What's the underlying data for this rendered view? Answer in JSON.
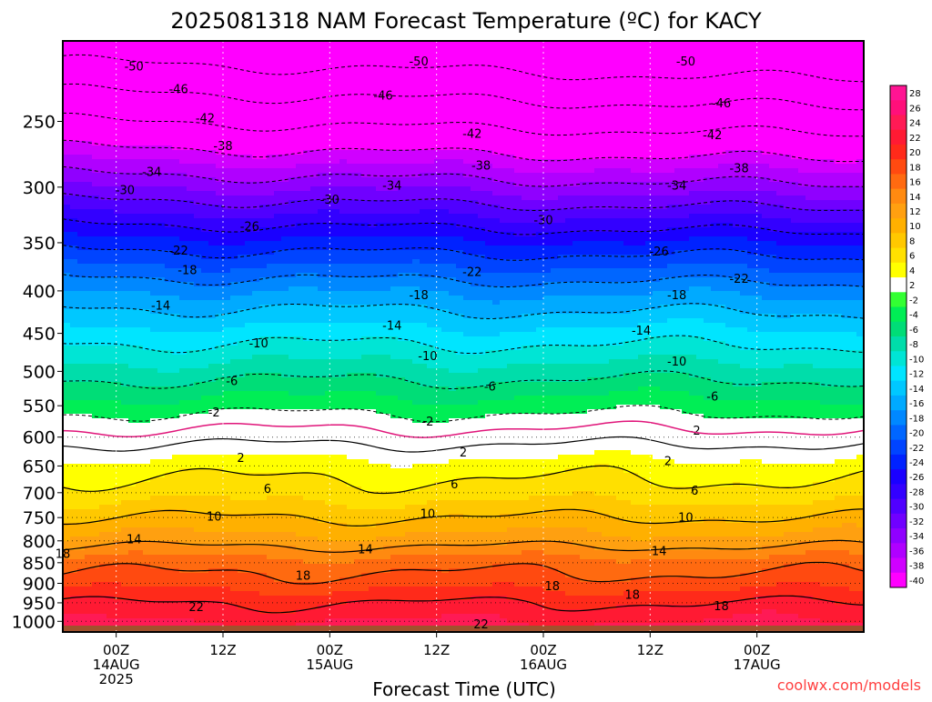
{
  "chart_data": {
    "type": "heatmap",
    "title": "2025081318 NAM Forecast Temperature (ºC) for KACY",
    "xlabel": "Forecast Time (UTC)",
    "ylabel": "",
    "watermark": "coolwx.com/models",
    "y_axis": {
      "scale": "log-pressure",
      "ylim": [
        1030,
        200
      ],
      "ticks": [
        250,
        300,
        350,
        400,
        450,
        500,
        550,
        600,
        650,
        700,
        750,
        800,
        850,
        900,
        950,
        1000
      ],
      "dotted_grid_levels": [
        600,
        650,
        700,
        750,
        800,
        850,
        900,
        950,
        1000
      ]
    },
    "x_axis": {
      "xlim": [
        -6,
        84
      ],
      "ticks": [
        {
          "hours": 0,
          "lines": [
            "00Z",
            "14AUG",
            "2025"
          ]
        },
        {
          "hours": 12,
          "lines": [
            "12Z"
          ]
        },
        {
          "hours": 24,
          "lines": [
            "00Z",
            "15AUG"
          ]
        },
        {
          "hours": 36,
          "lines": [
            "12Z"
          ]
        },
        {
          "hours": 48,
          "lines": [
            "00Z",
            "16AUG"
          ]
        },
        {
          "hours": 60,
          "lines": [
            "12Z"
          ]
        },
        {
          "hours": 72,
          "lines": [
            "00Z",
            "17AUG"
          ]
        }
      ],
      "dotted_grid_hours": [
        0,
        12,
        24,
        36,
        48,
        60,
        72
      ]
    },
    "colorbar": {
      "labels": [
        "28",
        "26",
        "24",
        "22",
        "20",
        "18",
        "16",
        "14",
        "12",
        "10",
        "8",
        "6",
        "4",
        "2",
        "-2",
        "-4",
        "-6",
        "-8",
        "-10",
        "-12",
        "-14",
        "-16",
        "-18",
        "-20",
        "-22",
        "-24",
        "-26",
        "-28",
        "-30",
        "-32",
        "-34",
        "-36",
        "-38",
        "-40"
      ],
      "colors": [
        "#ff1493",
        "#ff0f7a",
        "#ff1a55",
        "#ff1a33",
        "#ff2a1a",
        "#ff4a10",
        "#ff6a10",
        "#ff8a10",
        "#ffa010",
        "#ffb000",
        "#ffc800",
        "#ffe000",
        "#ffff00",
        "#ffffff",
        "#33ff33",
        "#00ee55",
        "#00dd77",
        "#00ddaa",
        "#00e5d5",
        "#00e5ff",
        "#00c8ff",
        "#00aaff",
        "#0088ff",
        "#0066ff",
        "#0044ff",
        "#0022ff",
        "#1a00ff",
        "#3300ff",
        "#5000ff",
        "#7000ff",
        "#9000ff",
        "#b000ff",
        "#d000ff",
        "#ff00ff"
      ]
    },
    "temperature_profile_t0": [
      {
        "p": 1000,
        "t": 24
      },
      {
        "p": 950,
        "t": 22
      },
      {
        "p": 900,
        "t": 19
      },
      {
        "p": 850,
        "t": 17
      },
      {
        "p": 800,
        "t": 13
      },
      {
        "p": 750,
        "t": 10
      },
      {
        "p": 700,
        "t": 7
      },
      {
        "p": 650,
        "t": 5
      },
      {
        "p": 600,
        "t": 1
      },
      {
        "p": 550,
        "t": -3
      },
      {
        "p": 500,
        "t": -7
      },
      {
        "p": 450,
        "t": -11
      },
      {
        "p": 400,
        "t": -16
      },
      {
        "p": 350,
        "t": -23
      },
      {
        "p": 300,
        "t": -32
      },
      {
        "p": 250,
        "t": -42
      },
      {
        "p": 200,
        "t": -53
      }
    ],
    "contours": [
      {
        "level": -50,
        "style": "dashed",
        "labels": [
          {
            "hours": 2,
            "p": 215
          },
          {
            "hours": 34,
            "p": 212
          },
          {
            "hours": 64,
            "p": 212
          }
        ]
      },
      {
        "level": -46,
        "style": "dashed",
        "labels": [
          {
            "hours": 7,
            "p": 229
          },
          {
            "hours": 30,
            "p": 233
          },
          {
            "hours": 68,
            "p": 238
          }
        ]
      },
      {
        "level": -42,
        "style": "dashed",
        "labels": [
          {
            "hours": 10,
            "p": 248
          },
          {
            "hours": 40,
            "p": 259
          },
          {
            "hours": 67,
            "p": 260
          }
        ]
      },
      {
        "level": -38,
        "style": "dashed",
        "labels": [
          {
            "hours": 12,
            "p": 268
          },
          {
            "hours": 41,
            "p": 283
          },
          {
            "hours": 70,
            "p": 285
          }
        ]
      },
      {
        "level": -34,
        "style": "dashed",
        "labels": [
          {
            "hours": 4,
            "p": 288
          },
          {
            "hours": 31,
            "p": 299
          },
          {
            "hours": 63,
            "p": 299
          }
        ]
      },
      {
        "level": -30,
        "style": "dashed",
        "labels": [
          {
            "hours": 1,
            "p": 303
          },
          {
            "hours": 24,
            "p": 311
          },
          {
            "hours": 48,
            "p": 329
          }
        ]
      },
      {
        "level": -26,
        "style": "dashed",
        "labels": [
          {
            "hours": 15,
            "p": 335
          },
          {
            "hours": 61,
            "p": 359
          }
        ]
      },
      {
        "level": -22,
        "style": "dashed",
        "labels": [
          {
            "hours": 7,
            "p": 358
          },
          {
            "hours": 40,
            "p": 380
          },
          {
            "hours": 70,
            "p": 387
          }
        ]
      },
      {
        "level": -18,
        "style": "dashed",
        "labels": [
          {
            "hours": 8,
            "p": 378
          },
          {
            "hours": 34,
            "p": 405
          },
          {
            "hours": 63,
            "p": 405
          }
        ]
      },
      {
        "level": -14,
        "style": "dashed",
        "labels": [
          {
            "hours": 5,
            "p": 417
          },
          {
            "hours": 31,
            "p": 441
          },
          {
            "hours": 59,
            "p": 447
          }
        ]
      },
      {
        "level": -10,
        "style": "dashed",
        "labels": [
          {
            "hours": 16,
            "p": 463
          },
          {
            "hours": 35,
            "p": 480
          },
          {
            "hours": 63,
            "p": 487
          }
        ]
      },
      {
        "level": -6,
        "style": "dashed",
        "labels": [
          {
            "hours": 13,
            "p": 514
          },
          {
            "hours": 42,
            "p": 522
          },
          {
            "hours": 67,
            "p": 537
          }
        ]
      },
      {
        "level": -2,
        "style": "dashed",
        "labels": [
          {
            "hours": 11,
            "p": 561
          },
          {
            "hours": 35,
            "p": 575
          },
          {
            "hours": 65,
            "p": 590
          }
        ]
      },
      {
        "level": 0,
        "style": "solid-pink",
        "labels": []
      },
      {
        "level": 2,
        "style": "solid",
        "labels": [
          {
            "hours": 14,
            "p": 636
          },
          {
            "hours": 39,
            "p": 627
          },
          {
            "hours": 62,
            "p": 642
          }
        ]
      },
      {
        "level": 6,
        "style": "solid",
        "labels": [
          {
            "hours": 17,
            "p": 693
          },
          {
            "hours": 38,
            "p": 685
          },
          {
            "hours": 65,
            "p": 697
          }
        ]
      },
      {
        "level": 10,
        "style": "solid",
        "labels": [
          {
            "hours": 11,
            "p": 749
          },
          {
            "hours": 35,
            "p": 743
          },
          {
            "hours": 64,
            "p": 751
          }
        ]
      },
      {
        "level": 14,
        "style": "solid",
        "labels": [
          {
            "hours": 2,
            "p": 797
          },
          {
            "hours": 28,
            "p": 820
          },
          {
            "hours": 61,
            "p": 824
          }
        ]
      },
      {
        "level": 18,
        "style": "solid",
        "labels": [
          {
            "hours": -6,
            "p": 830
          },
          {
            "hours": 21,
            "p": 882
          },
          {
            "hours": 49,
            "p": 908
          },
          {
            "hours": 58,
            "p": 930
          },
          {
            "hours": 68,
            "p": 960
          }
        ]
      },
      {
        "level": 22,
        "style": "solid",
        "labels": [
          {
            "hours": 9,
            "p": 962
          },
          {
            "hours": 41,
            "p": 1010
          }
        ]
      }
    ]
  }
}
